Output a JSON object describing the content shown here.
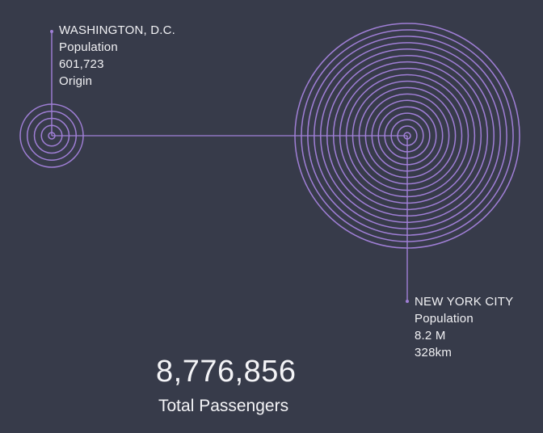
{
  "accent_color": "#a07fd6",
  "background_color": "#373b4a",
  "origin": {
    "city": "WASHINGTON, D.C.",
    "metric_label": "Population",
    "population": "601,723",
    "role": "Origin",
    "ring_count": 5
  },
  "destination": {
    "city": "NEW YORK CITY",
    "metric_label": "Population",
    "population": "8.2 M",
    "distance": "328km",
    "ring_count": 18
  },
  "summary": {
    "value": "8,776,856",
    "label": "Total Passengers"
  }
}
